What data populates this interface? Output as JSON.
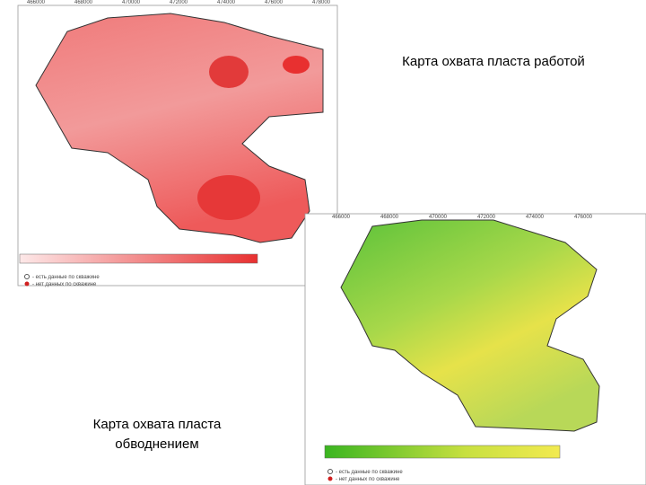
{
  "captions": {
    "work": "Карта охвата пласта работой",
    "flooding": "Карта охвата пласта обводнением"
  },
  "map_work": {
    "x_labels": [
      "466000",
      "468000",
      "470000",
      "472000",
      "474000",
      "476000",
      "478000"
    ],
    "legend": [
      "- есть данные по скважине",
      "- нет данных по скважине"
    ]
  },
  "map_flooding": {
    "x_labels": [
      "466000",
      "468000",
      "470000",
      "472000",
      "474000",
      "476000"
    ],
    "legend": [
      "- есть данные по скважине",
      "- нет данных по скважине"
    ]
  }
}
